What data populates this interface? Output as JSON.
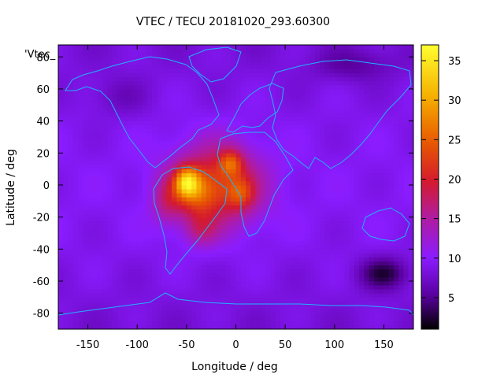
{
  "chart_data": {
    "type": "heatmap",
    "title": "VTEC / TECU 20181020_293.60300",
    "xlabel": "Longitude / deg",
    "ylabel": "Latitude / deg",
    "series_key": "'Vtec_",
    "xlim": [
      -180,
      180
    ],
    "ylim": [
      -90,
      87.5
    ],
    "xticks": [
      -150,
      -100,
      -50,
      0,
      50,
      100,
      150
    ],
    "yticks": [
      -80,
      -60,
      -40,
      -20,
      0,
      20,
      40,
      60,
      80
    ],
    "colorbar": {
      "min": 1,
      "max": 37,
      "ticks": [
        5,
        10,
        15,
        20,
        25,
        30,
        35
      ]
    },
    "grid": false,
    "field": {
      "background_tecu": 8,
      "features": [
        {
          "name": "equatorial-anomaly-crest",
          "lon": -50,
          "lat": 2,
          "peak_tecu": 37
        },
        {
          "name": "south-america-maximum",
          "lon": -40,
          "lat": -5,
          "peak_tecu": 28
        },
        {
          "name": "west-africa-maximum",
          "lon": -5,
          "lat": 14,
          "peak_tecu": 30
        },
        {
          "name": "central-africa-maximum",
          "lon": 5,
          "lat": -5,
          "peak_tecu": 28
        },
        {
          "name": "south-atlantic-enhancement",
          "lon": -35,
          "lat": -28,
          "peak_tecu": 22
        },
        {
          "name": "antarctic-night-minimum",
          "lon": 150,
          "lat": -55,
          "peak_tecu": 2
        },
        {
          "name": "arctic-minimum",
          "lon": 120,
          "lat": 75,
          "peak_tecu": 4
        }
      ]
    }
  }
}
